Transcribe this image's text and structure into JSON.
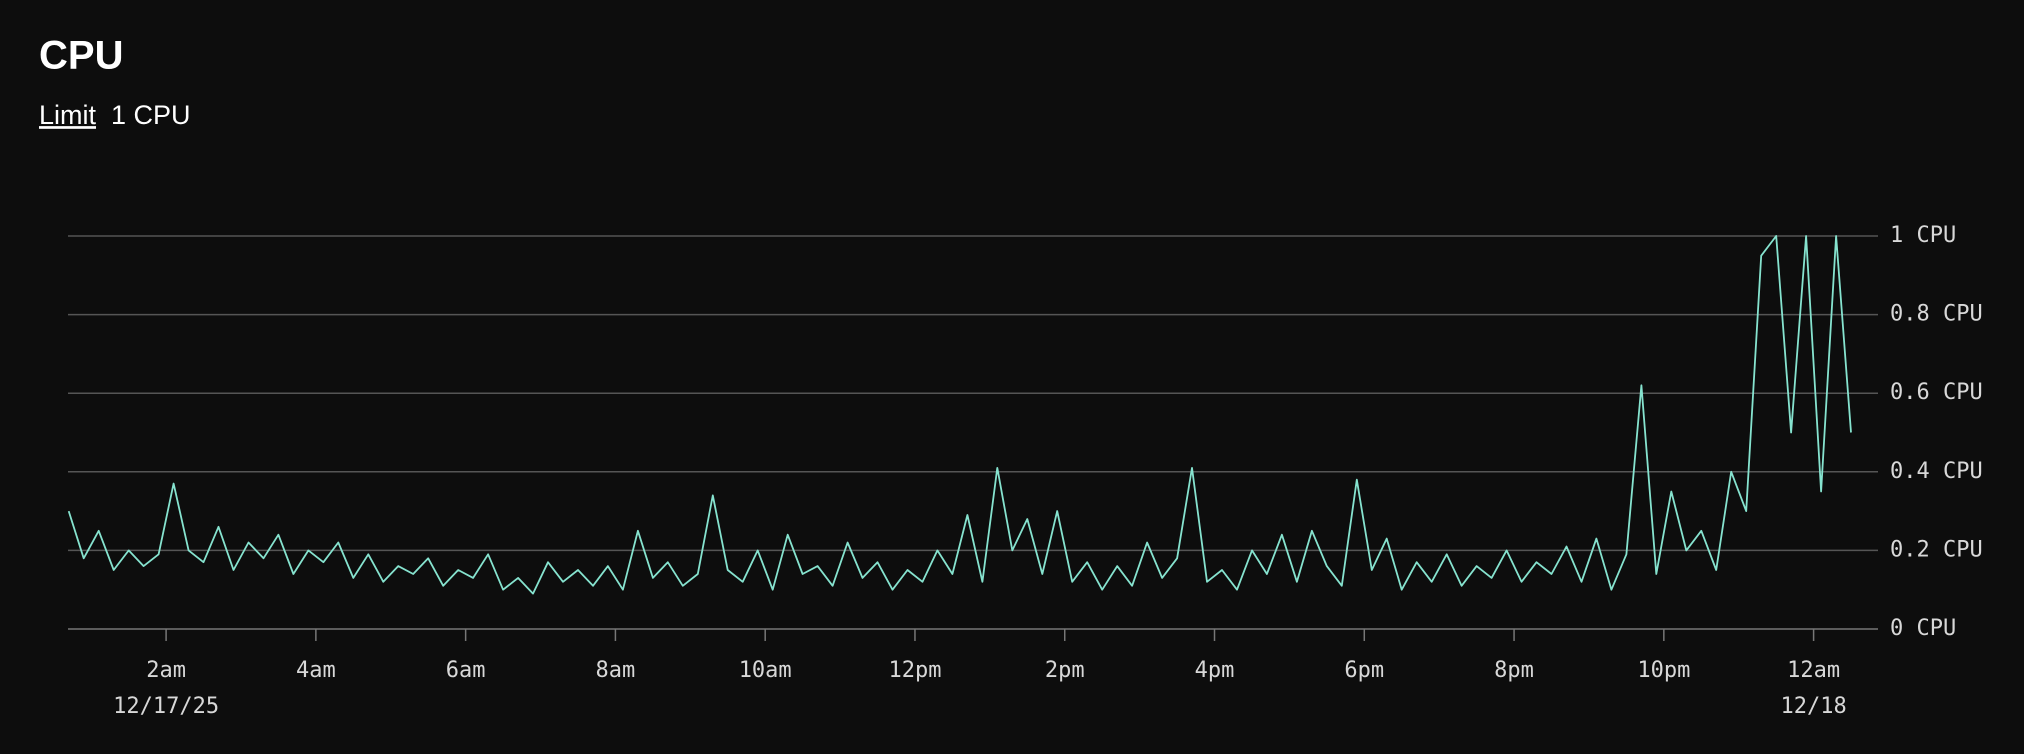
{
  "chart_data": {
    "type": "line",
    "title": "CPU",
    "limit_label": "Limit",
    "limit_value": "1 CPU",
    "xlim": [
      0.69,
      24.86
    ],
    "ylim": [
      0,
      1
    ],
    "yticks": [
      {
        "value": 0,
        "label": "0 CPU"
      },
      {
        "value": 0.2,
        "label": "0.2 CPU"
      },
      {
        "value": 0.4,
        "label": "0.4 CPU"
      },
      {
        "value": 0.6,
        "label": "0.6 CPU"
      },
      {
        "value": 0.8,
        "label": "0.8 CPU"
      },
      {
        "value": 1,
        "label": "1 CPU"
      }
    ],
    "xticks": [
      {
        "value": 2,
        "label": "2am"
      },
      {
        "value": 4,
        "label": "4am"
      },
      {
        "value": 6,
        "label": "6am"
      },
      {
        "value": 8,
        "label": "8am"
      },
      {
        "value": 10,
        "label": "10am"
      },
      {
        "value": 12,
        "label": "12pm"
      },
      {
        "value": 14,
        "label": "2pm"
      },
      {
        "value": 16,
        "label": "4pm"
      },
      {
        "value": 18,
        "label": "6pm"
      },
      {
        "value": 20,
        "label": "8pm"
      },
      {
        "value": 22,
        "label": "10pm"
      },
      {
        "value": 24,
        "label": "12am"
      }
    ],
    "x_date_labels": [
      {
        "value": 2,
        "label": "12/17/25"
      },
      {
        "value": 24,
        "label": "12/18"
      }
    ],
    "grid": true,
    "x": [
      0.7,
      0.9,
      1.1,
      1.3,
      1.5,
      1.7,
      1.9,
      2.1,
      2.3,
      2.5,
      2.7,
      2.9,
      3.1,
      3.3,
      3.5,
      3.7,
      3.9,
      4.1,
      4.3,
      4.5,
      4.7,
      4.9,
      5.1,
      5.3,
      5.5,
      5.7,
      5.9,
      6.1,
      6.3,
      6.5,
      6.7,
      6.9,
      7.1,
      7.3,
      7.5,
      7.7,
      7.9,
      8.1,
      8.3,
      8.5,
      8.7,
      8.9,
      9.1,
      9.3,
      9.5,
      9.7,
      9.9,
      10.1,
      10.3,
      10.5,
      10.7,
      10.9,
      11.1,
      11.3,
      11.5,
      11.7,
      11.9,
      12.1,
      12.3,
      12.5,
      12.7,
      12.9,
      13.1,
      13.3,
      13.5,
      13.7,
      13.9,
      14.1,
      14.3,
      14.5,
      14.7,
      14.9,
      15.1,
      15.3,
      15.5,
      15.7,
      15.9,
      16.1,
      16.3,
      16.5,
      16.7,
      16.9,
      17.1,
      17.3,
      17.5,
      17.7,
      17.9,
      18.1,
      18.3,
      18.5,
      18.7,
      18.9,
      19.1,
      19.3,
      19.5,
      19.7,
      19.9,
      20.1,
      20.3,
      20.5,
      20.7,
      20.9,
      21.1,
      21.3,
      21.5,
      21.7,
      21.9,
      22.1,
      22.3,
      22.5,
      22.7,
      22.9,
      23.1,
      23.3,
      23.5,
      23.7,
      23.9,
      24.1,
      24.3,
      24.5
    ],
    "series": [
      {
        "name": "CPU",
        "color": "#86e3cf",
        "values": [
          0.3,
          0.18,
          0.25,
          0.15,
          0.2,
          0.16,
          0.19,
          0.37,
          0.2,
          0.17,
          0.26,
          0.15,
          0.22,
          0.18,
          0.24,
          0.14,
          0.2,
          0.17,
          0.22,
          0.13,
          0.19,
          0.12,
          0.16,
          0.14,
          0.18,
          0.11,
          0.15,
          0.13,
          0.19,
          0.1,
          0.13,
          0.09,
          0.17,
          0.12,
          0.15,
          0.11,
          0.16,
          0.1,
          0.25,
          0.13,
          0.17,
          0.11,
          0.14,
          0.34,
          0.15,
          0.12,
          0.2,
          0.1,
          0.24,
          0.14,
          0.16,
          0.11,
          0.22,
          0.13,
          0.17,
          0.1,
          0.15,
          0.12,
          0.2,
          0.14,
          0.29,
          0.12,
          0.41,
          0.2,
          0.28,
          0.14,
          0.3,
          0.12,
          0.17,
          0.1,
          0.16,
          0.11,
          0.22,
          0.13,
          0.18,
          0.41,
          0.12,
          0.15,
          0.1,
          0.2,
          0.14,
          0.24,
          0.12,
          0.25,
          0.16,
          0.11,
          0.38,
          0.15,
          0.23,
          0.1,
          0.17,
          0.12,
          0.19,
          0.11,
          0.16,
          0.13,
          0.2,
          0.12,
          0.17,
          0.14,
          0.21,
          0.12,
          0.23,
          0.1,
          0.19,
          0.62,
          0.14,
          0.35,
          0.2,
          0.25,
          0.15,
          0.4,
          0.3,
          0.95,
          1,
          0.5,
          1,
          0.35,
          1,
          0.5
        ]
      }
    ]
  }
}
